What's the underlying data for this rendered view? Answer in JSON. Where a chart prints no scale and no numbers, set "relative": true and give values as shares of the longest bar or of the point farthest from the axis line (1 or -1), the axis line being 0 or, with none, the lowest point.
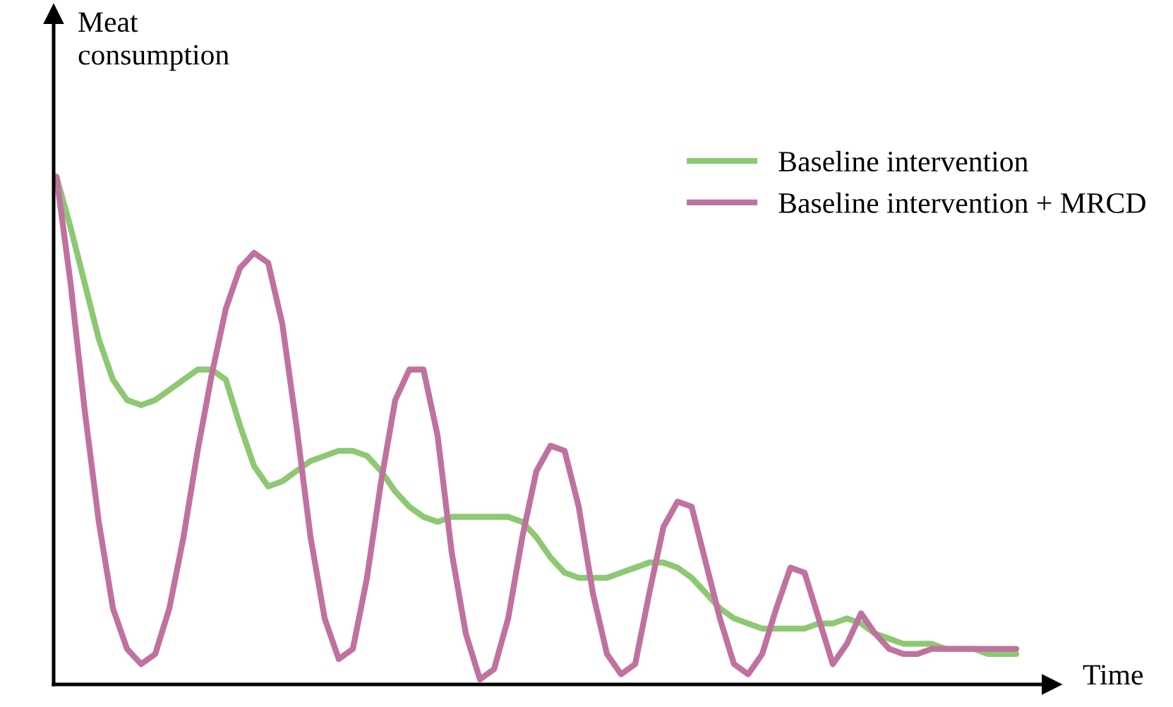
{
  "chart_data": {
    "type": "line",
    "relative": true,
    "xlabel": "Time",
    "ylabel": "Meat\nconsumption",
    "legend": "top right",
    "marker": "none",
    "line_style": "solid",
    "grid": false,
    "categories": [
      null,
      null,
      null,
      null,
      null,
      null,
      null,
      null,
      null,
      null,
      null,
      null,
      null,
      null,
      null,
      null,
      null,
      null,
      null,
      null,
      null,
      null,
      null,
      null,
      null,
      null,
      null,
      null,
      null,
      null,
      null,
      null,
      null,
      null,
      null,
      null,
      null,
      null,
      null,
      null,
      null,
      null,
      null,
      null,
      null,
      null,
      null,
      null,
      null,
      null,
      null,
      null,
      null,
      null,
      null,
      null,
      null,
      null,
      null,
      null,
      null,
      null,
      null,
      null,
      null,
      null,
      null,
      null,
      null
    ],
    "series": [
      {
        "name": "Baseline intervention",
        "color": "#8dc873",
        "values": [
          1.0,
          0.9,
          0.79,
          0.68,
          0.6,
          0.56,
          0.55,
          0.56,
          0.58,
          0.6,
          0.62,
          0.62,
          0.6,
          0.51,
          0.43,
          0.39,
          0.4,
          0.42,
          0.44,
          0.45,
          0.46,
          0.46,
          0.45,
          0.42,
          0.38,
          0.35,
          0.33,
          0.32,
          0.33,
          0.33,
          0.33,
          0.33,
          0.33,
          0.32,
          0.29,
          0.25,
          0.22,
          0.21,
          0.21,
          0.21,
          0.22,
          0.23,
          0.24,
          0.24,
          0.23,
          0.21,
          0.18,
          0.15,
          0.13,
          0.12,
          0.11,
          0.11,
          0.11,
          0.11,
          0.12,
          0.12,
          0.13,
          0.12,
          0.1,
          0.09,
          0.08,
          0.08,
          0.08,
          0.07,
          0.07,
          0.07,
          0.06,
          0.06,
          0.06
        ]
      },
      {
        "name": "Baseline intervention + MRCD",
        "color": "#c0719f",
        "values": [
          1.0,
          0.79,
          0.54,
          0.32,
          0.15,
          0.07,
          0.04,
          0.06,
          0.15,
          0.29,
          0.46,
          0.61,
          0.74,
          0.82,
          0.85,
          0.83,
          0.71,
          0.51,
          0.29,
          0.13,
          0.05,
          0.07,
          0.21,
          0.4,
          0.56,
          0.62,
          0.62,
          0.49,
          0.26,
          0.1,
          0.01,
          0.03,
          0.13,
          0.29,
          0.42,
          0.47,
          0.46,
          0.35,
          0.18,
          0.06,
          0.02,
          0.04,
          0.18,
          0.31,
          0.36,
          0.35,
          0.24,
          0.13,
          0.04,
          0.02,
          0.06,
          0.15,
          0.23,
          0.22,
          0.13,
          0.04,
          0.08,
          0.14,
          0.1,
          0.07,
          0.06,
          0.06,
          0.07,
          0.07,
          0.07,
          0.07,
          0.07,
          0.07,
          0.07
        ]
      }
    ]
  }
}
